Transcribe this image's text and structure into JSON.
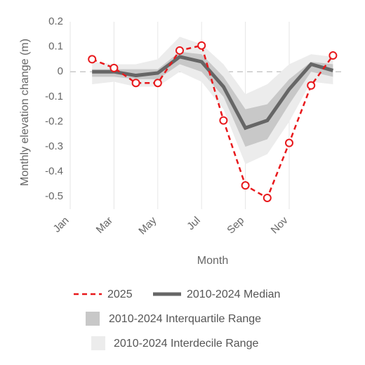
{
  "chart_data": {
    "type": "line",
    "x_label": "Month",
    "y_label": "Monthly elevation change (m)",
    "x": [
      2,
      3,
      4,
      5,
      6,
      7,
      8,
      9,
      10,
      11,
      12,
      13
    ],
    "xlim": [
      1,
      13.5
    ],
    "xticks": [
      {
        "value": 1,
        "label": "Jan"
      },
      {
        "value": 3,
        "label": "Mar"
      },
      {
        "value": 5,
        "label": "May"
      },
      {
        "value": 7,
        "label": "Jul"
      },
      {
        "value": 9,
        "label": "Sep"
      },
      {
        "value": 11,
        "label": "Nov"
      }
    ],
    "ylim": [
      -0.55,
      0.2
    ],
    "yticks": [
      0.2,
      0.1,
      0,
      -0.1,
      -0.2,
      -0.3,
      -0.4,
      -0.5
    ],
    "grid": true,
    "series": [
      {
        "name": "2010-2024 Interdecile Range",
        "kind": "band",
        "color": "#ececec",
        "upper": [
          0.04,
          0.03,
          0.03,
          0.05,
          0.14,
          0.11,
          0.03,
          -0.09,
          -0.05,
          0.03,
          0.07,
          0.06
        ],
        "lower": [
          -0.05,
          -0.04,
          -0.06,
          -0.06,
          0,
          -0.04,
          -0.15,
          -0.37,
          -0.33,
          -0.2,
          -0.04,
          -0.05
        ]
      },
      {
        "name": "2010-2024 Interquartile Range",
        "kind": "band",
        "color": "#c8c8c8",
        "upper": [
          0.01,
          0.01,
          0.01,
          0.01,
          0.08,
          0.07,
          -0.02,
          -0.15,
          -0.13,
          -0.03,
          0.04,
          0.03
        ],
        "lower": [
          -0.02,
          -0.02,
          -0.03,
          -0.03,
          0.03,
          0,
          -0.1,
          -0.3,
          -0.27,
          -0.13,
          0,
          -0.02
        ]
      },
      {
        "name": "2010-2024 Median",
        "kind": "line",
        "color": "#666666",
        "values": [
          0,
          0,
          -0.015,
          -0.005,
          0.06,
          0.04,
          -0.06,
          -0.225,
          -0.195,
          -0.07,
          0.03,
          0.005
        ]
      },
      {
        "name": "2025",
        "kind": "dashed",
        "color": "#e8191c",
        "values": [
          0.05,
          0.015,
          -0.045,
          -0.045,
          0.085,
          0.105,
          -0.195,
          -0.455,
          -0.505,
          -0.285,
          -0.055,
          0.065
        ]
      }
    ]
  }
}
